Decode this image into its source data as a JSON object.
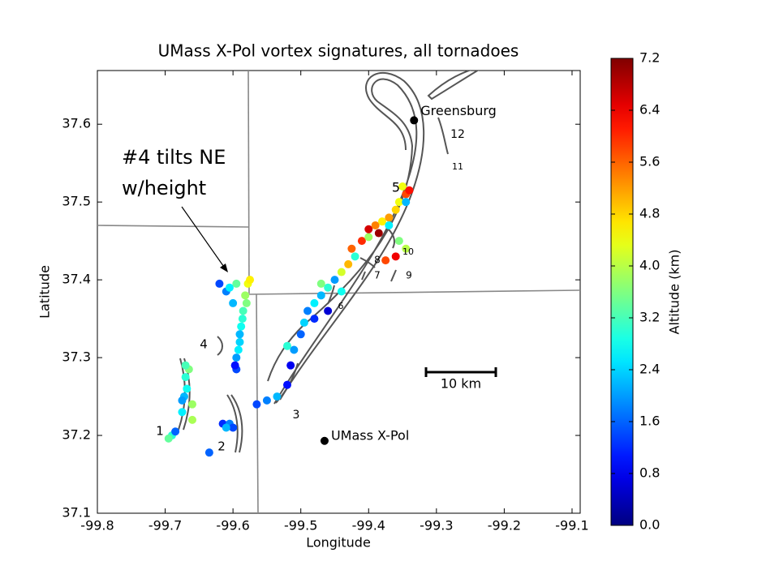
{
  "chart_data": {
    "type": "scatter",
    "title": "UMass X-Pol vortex signatures, all tornadoes",
    "x_label": "Longitude",
    "y_label": "Latitude",
    "colorbar_label": "Altitude (km)",
    "colormap": "jet",
    "clim": [
      0,
      7.2
    ],
    "cticks": [
      {
        "value": 0,
        "label": "0.0"
      },
      0.8,
      1.6,
      2.4,
      3.2,
      {
        "value": 4,
        "label": "4.0"
      },
      4.8,
      5.6,
      6.4,
      7.2
    ],
    "xlim": [
      -99.8,
      -99.088
    ],
    "ylim": [
      37.1,
      37.669
    ],
    "xticks": [
      -99.8,
      -99.7,
      -99.6,
      -99.5,
      -99.4,
      -99.3,
      -99.2,
      -99.1
    ],
    "yticks": [
      37.1,
      37.2,
      37.3,
      37.4,
      37.5,
      37.6
    ],
    "x": [
      -99.69,
      -99.695,
      -99.685,
      -99.675,
      -99.672,
      -99.668,
      -99.67,
      -99.665,
      -99.67,
      -99.66,
      -99.675,
      -99.66,
      -99.615,
      -99.605,
      -99.6,
      -99.635,
      -99.61,
      -99.595,
      -99.595,
      -99.59,
      -99.588,
      -99.585,
      -99.582,
      -99.578,
      -99.575,
      -99.592,
      -99.586,
      -99.6,
      -99.61,
      -99.62,
      -99.605,
      -99.595,
      -99.58,
      -99.59,
      -99.597,
      -99.565,
      -99.55,
      -99.535,
      -99.52,
      -99.515,
      -99.51,
      -99.52,
      -99.5,
      -99.495,
      -99.49,
      -99.48,
      -99.47,
      -99.46,
      -99.47,
      -99.45,
      -99.44,
      -99.43,
      -99.42,
      -99.425,
      -99.41,
      -99.4,
      -99.4,
      -99.39,
      -99.38,
      -99.385,
      -99.37,
      -99.36,
      -99.37,
      -99.355,
      -99.345,
      -99.35,
      -99.34,
      -99.345,
      -99.355,
      -99.345,
      -99.36,
      -99.375,
      -99.44,
      -99.48,
      -99.46
    ],
    "y": [
      37.2,
      37.196,
      37.205,
      37.23,
      37.25,
      37.26,
      37.275,
      37.285,
      37.29,
      37.24,
      37.245,
      37.22,
      37.215,
      37.215,
      37.21,
      37.178,
      37.21,
      37.285,
      37.3,
      37.32,
      37.34,
      37.36,
      37.38,
      37.395,
      37.4,
      37.31,
      37.35,
      37.37,
      37.385,
      37.395,
      37.39,
      37.395,
      37.37,
      37.33,
      37.29,
      37.24,
      37.245,
      37.25,
      37.265,
      37.29,
      37.31,
      37.315,
      37.33,
      37.345,
      37.36,
      37.37,
      37.38,
      37.39,
      37.395,
      37.4,
      37.41,
      37.42,
      37.43,
      37.44,
      37.45,
      37.455,
      37.465,
      37.47,
      37.475,
      37.46,
      37.48,
      37.49,
      37.47,
      37.5,
      37.51,
      37.52,
      37.515,
      37.5,
      37.45,
      37.44,
      37.43,
      37.425,
      37.385,
      37.35,
      37.36
    ],
    "values": [
      3.0,
      3.4,
      1.6,
      2.6,
      2.2,
      2.8,
      3.0,
      3.6,
      3.2,
      3.8,
      2.0,
      3.9,
      1.2,
      1.8,
      1.4,
      1.6,
      2.2,
      1.4,
      2.0,
      2.4,
      2.8,
      3.2,
      3.8,
      4.4,
      4.6,
      2.6,
      3.0,
      2.2,
      1.8,
      1.4,
      2.6,
      3.4,
      3.6,
      2.2,
      1.0,
      1.4,
      1.8,
      2.2,
      1.0,
      0.8,
      2.0,
      3.0,
      1.6,
      2.4,
      1.8,
      2.6,
      2.2,
      3.0,
      3.6,
      2.0,
      4.2,
      5.0,
      3.0,
      5.6,
      6.0,
      3.8,
      6.6,
      5.4,
      4.6,
      7.0,
      5.2,
      4.8,
      2.6,
      4.4,
      5.8,
      4.4,
      6.2,
      2.2,
      3.6,
      4.0,
      6.4,
      5.8,
      2.8,
      1.2,
      0.6
    ],
    "locations": [
      {
        "name": "Greensburg",
        "x": -99.333,
        "y": 37.605
      },
      {
        "name": "UMass X-Pol",
        "x": -99.465,
        "y": 37.193
      }
    ],
    "track_labels": [
      "1",
      "2",
      "3",
      "4",
      "5",
      "6",
      "7",
      "8",
      "9",
      "10",
      "11",
      "12"
    ],
    "scale_bar": "10 km",
    "annotation": [
      "#4 tilts NE",
      "w/height"
    ]
  }
}
